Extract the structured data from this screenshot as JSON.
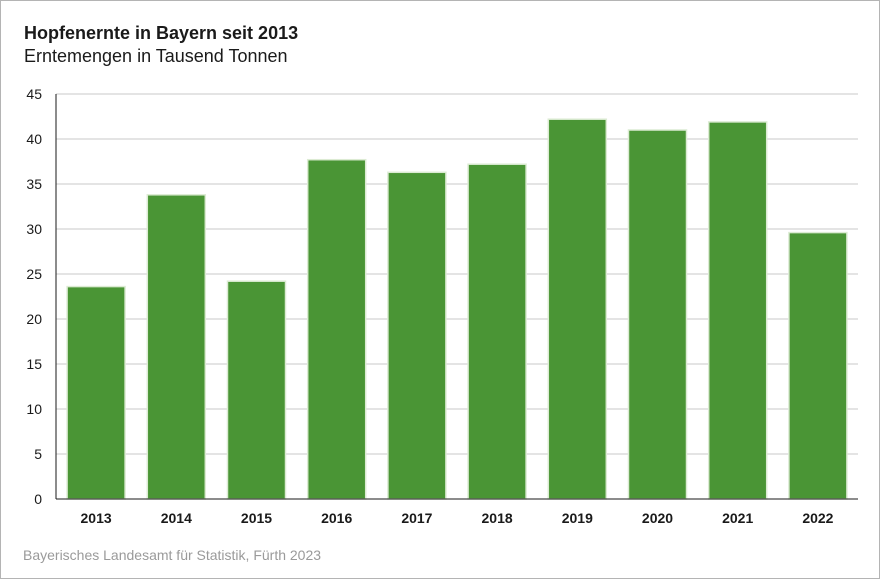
{
  "chart_data": {
    "type": "bar",
    "title": "Hopfenernte in Bayern seit 2013",
    "subtitle": "Erntemengen in Tausend Tonnen",
    "categories": [
      "2013",
      "2014",
      "2015",
      "2016",
      "2017",
      "2018",
      "2019",
      "2020",
      "2021",
      "2022"
    ],
    "values": [
      23.6,
      33.8,
      24.2,
      37.7,
      36.3,
      37.2,
      42.2,
      41.0,
      41.9,
      29.6
    ],
    "ylim": [
      0,
      45
    ],
    "yticks": [
      0,
      5,
      10,
      15,
      20,
      25,
      30,
      35,
      40,
      45
    ],
    "xlabel": "",
    "ylabel": "",
    "grid": true,
    "bar_color": "#4a9535",
    "source": "Bayerisches Landesamt für Statistik, Fürth 2023"
  }
}
